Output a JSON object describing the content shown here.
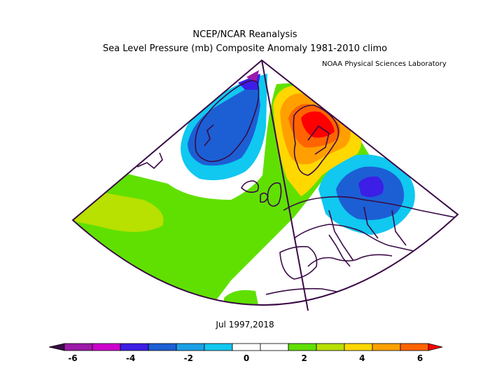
{
  "title_line1": "NCEP/NCAR Reanalysis",
  "title_line2": "Sea Level Pressure (mb) Composite Anomaly 1981-2010 climo",
  "credit": "NOAA Physical Sciences Laboratory",
  "period": "Jul 1997,2018",
  "colorbar": {
    "ticks": [
      "-6",
      "-4",
      "-2",
      "0",
      "2",
      "4",
      "6"
    ],
    "colors": [
      "#3a0a46",
      "#9c1aa8",
      "#cc00cc",
      "#3c1ee6",
      "#1c5fd4",
      "#1aa0e6",
      "#10c8f0",
      "#ffffff",
      "#ffffff",
      "#60e000",
      "#b8e000",
      "#ffd800",
      "#ffa000",
      "#ff6400",
      "#ff0000"
    ]
  },
  "map": {
    "colors": {
      "ocean_green": "#60e000",
      "light_green": "#b8e000",
      "lt_blue": "#10c8f0",
      "mid_blue": "#1c5fd4",
      "dark_blue": "#3c1ee6",
      "purple": "#9c1aa8",
      "yellow": "#ffd800",
      "orange": "#ffa000",
      "dk_orange": "#ff6400",
      "red": "#ff0000",
      "border": "#3a0a46"
    }
  }
}
